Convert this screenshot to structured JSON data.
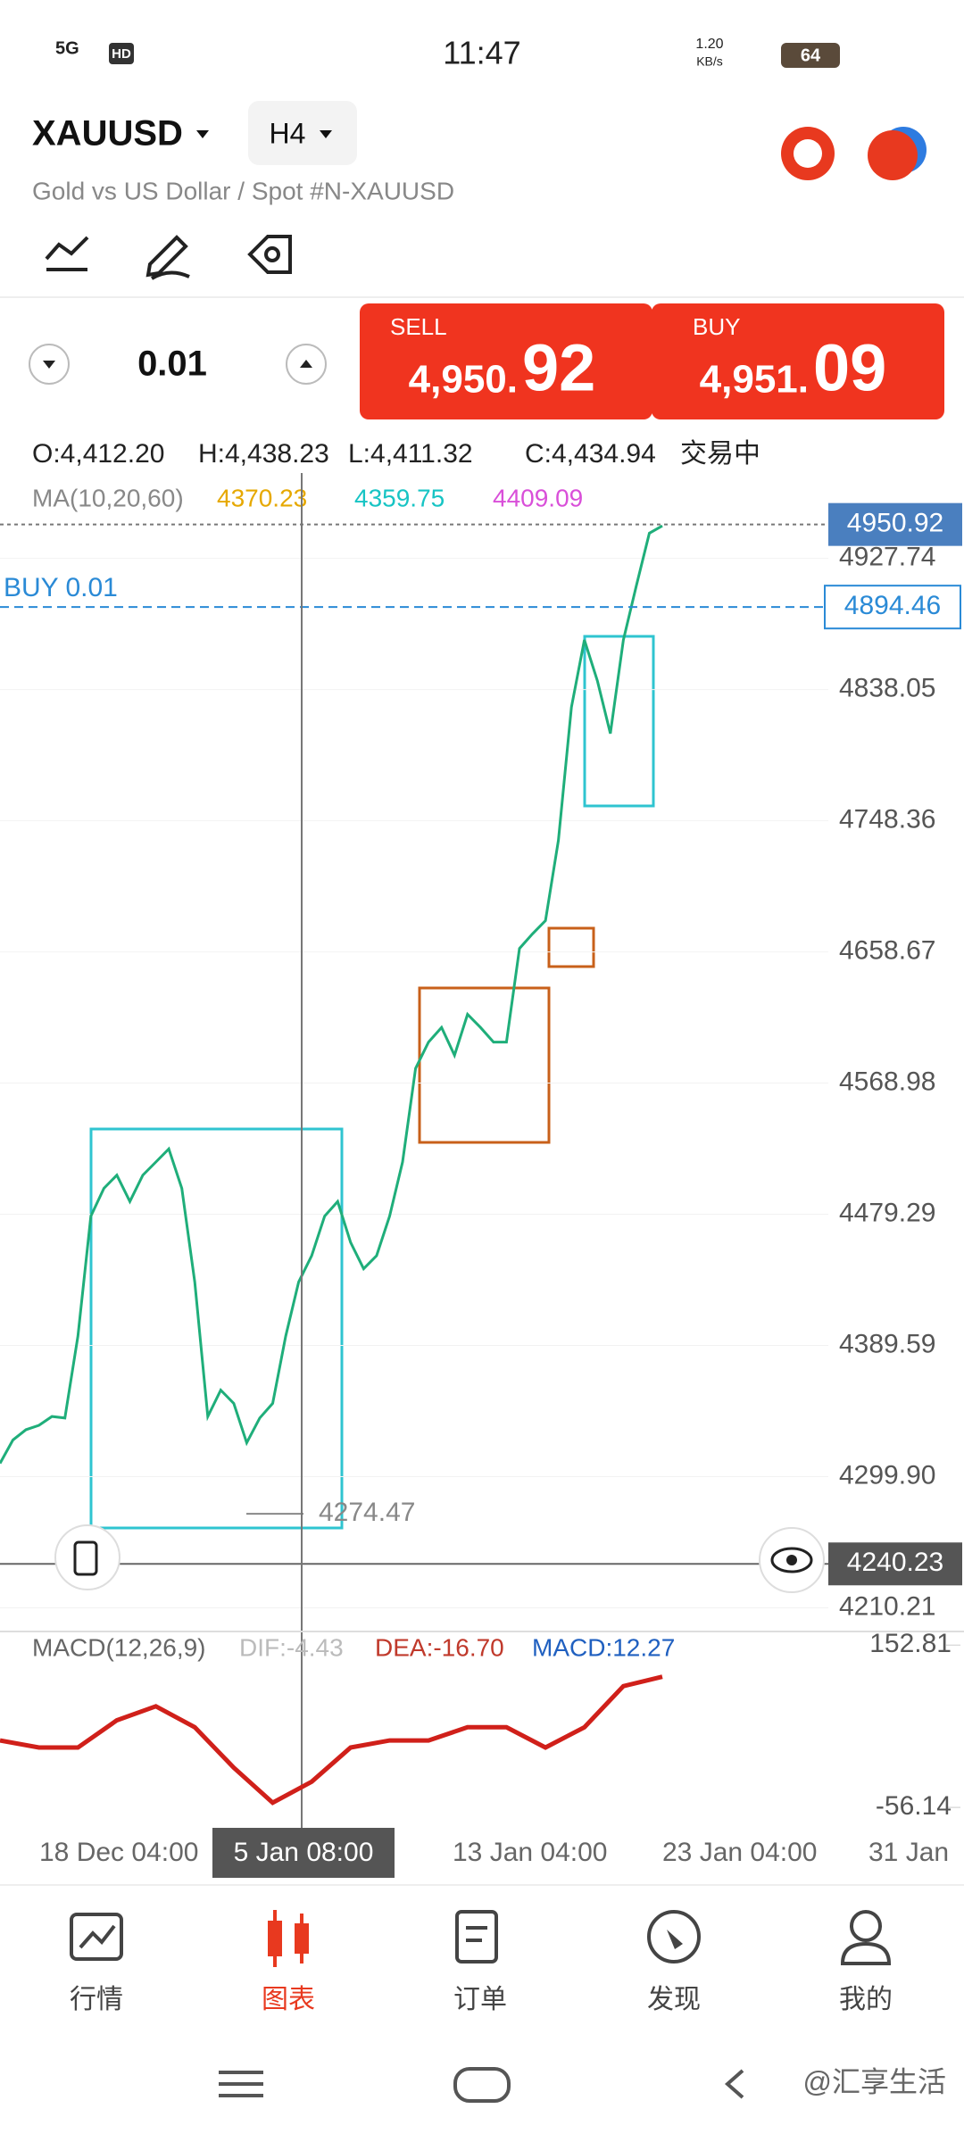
{
  "status_bar": {
    "network": "5G",
    "hd": "HD",
    "time": "11:47",
    "speed": "1.20",
    "speed_unit": "KB/s",
    "battery": "64"
  },
  "header": {
    "symbol": "XAUUSD",
    "timeframe": "H4",
    "subtitle": "Gold vs US Dollar / Spot #N-XAUUSD"
  },
  "trade": {
    "volume": "0.01",
    "sell": {
      "label": "SELL",
      "price_main": "4,950.",
      "price_big": "92"
    },
    "buy": {
      "label": "BUY",
      "price_main": "4,951.",
      "price_big": "09"
    }
  },
  "ohlc": {
    "open": "O:4,412.20",
    "high": "H:4,438.23",
    "low": "L:4,411.32",
    "close": "C:4,434.94",
    "status": "交易中"
  },
  "ma": {
    "label": "MA(10,20,60)",
    "ma10": "4370.23",
    "ma20": "4359.75",
    "ma60": "4409.09"
  },
  "price_chart": {
    "closes": [
      4309,
      4325,
      4332,
      4335,
      4341,
      4340,
      4396,
      4478,
      4497,
      4506,
      4488,
      4506,
      4515,
      4524,
      4497,
      4433,
      4341,
      4359,
      4350,
      4323,
      4340,
      4350,
      4396,
      4433,
      4451,
      4478,
      4488,
      4460,
      4442,
      4451,
      4478,
      4515,
      4579,
      4597,
      4607,
      4588,
      4616,
      4607,
      4597,
      4597,
      4661,
      4671,
      4680,
      4735,
      4826,
      4872,
      4844,
      4808,
      4872,
      4909,
      4945,
      4950
    ],
    "ylim": [
      4205,
      4980
    ],
    "yticks": [
      4927.74,
      4838.05,
      4748.36,
      4658.67,
      4568.98,
      4479.29,
      4389.59,
      {
        "value": 4299.9,
        "label": "4299.90"
      },
      4210.21
    ],
    "current_price": 4950.92,
    "position": {
      "label": "BUY 0.01",
      "price": 4894.46
    },
    "crosshair_price": 4240.23,
    "low_marker": 4274.47,
    "x_labels": [
      "18 Dec 04:00",
      "13 Jan 04:00",
      "23 Jan 04:00",
      "31 Jan"
    ],
    "crosshair_time": "5 Jan 08:00"
  },
  "macd_chart": {
    "title": "MACD(12,26,9)",
    "dif": "DIF:-4.43",
    "dea": "DEA:-16.70",
    "macd": "MACD:12.27",
    "ylim": [
      -79,
      168
    ],
    "yticks": [
      152.81,
      -56.14
    ],
    "dea_values": [
      30,
      21,
      21,
      56,
      74,
      47,
      -5,
      -50,
      -23,
      21,
      30,
      30,
      47,
      47,
      21,
      47,
      100,
      112
    ]
  },
  "nav": [
    "行情",
    "图表",
    "订单",
    "发现",
    "我的"
  ],
  "watermark": "@汇享生活"
}
